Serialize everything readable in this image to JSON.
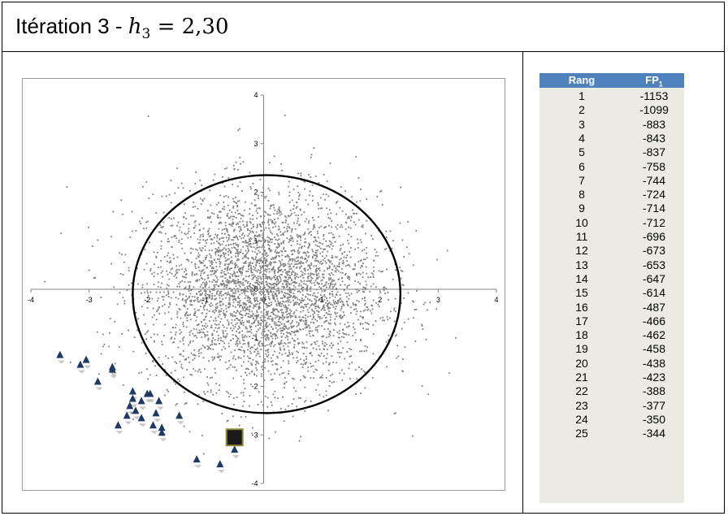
{
  "title": {
    "prefix": "Itération 3 - ",
    "var_letter": "h",
    "var_sub": "3",
    "equals": " = 2,30"
  },
  "chart_data": {
    "type": "scatter",
    "title": "",
    "xlabel": "",
    "ylabel": "",
    "xlim": [
      -4,
      4
    ],
    "ylim": [
      -4,
      4
    ],
    "x_ticks": [
      "-4",
      "-3",
      "-2",
      "-1",
      "0",
      "1",
      "2",
      "3",
      "4"
    ],
    "y_ticks": [
      "4",
      "3",
      "2",
      "1",
      "0",
      "-1",
      "-2",
      "-3",
      "-4"
    ],
    "cloud": {
      "n": 4000,
      "center": [
        0,
        0
      ],
      "sd": [
        1.0,
        1.0
      ],
      "color": "#808080"
    },
    "ellipse": {
      "center": [
        0.05,
        -0.1
      ],
      "rx": 2.3,
      "ry": 2.45,
      "rotation_deg": 0,
      "color": "#000000"
    },
    "series": [
      {
        "marker": "triangle",
        "color": "#1f3864",
        "points": [
          [
            -3.5,
            -1.35
          ],
          [
            -3.15,
            -1.55
          ],
          [
            -3.05,
            -1.45
          ],
          [
            -2.6,
            -1.6
          ],
          [
            -2.6,
            -1.65
          ],
          [
            -2.85,
            -1.9
          ],
          [
            -2.25,
            -2.1
          ],
          [
            -2.25,
            -2.25
          ],
          [
            -2.3,
            -2.4
          ],
          [
            -2.0,
            -2.15
          ],
          [
            -1.95,
            -2.15
          ],
          [
            -2.1,
            -2.3
          ],
          [
            -1.8,
            -2.3
          ],
          [
            -1.85,
            -2.55
          ],
          [
            -2.2,
            -2.5
          ],
          [
            -2.35,
            -2.6
          ],
          [
            -2.1,
            -2.65
          ],
          [
            -2.5,
            -2.8
          ],
          [
            -1.9,
            -2.8
          ],
          [
            -1.75,
            -2.85
          ],
          [
            -1.75,
            -2.95
          ],
          [
            -1.45,
            -2.6
          ],
          [
            -1.15,
            -3.5
          ],
          [
            -0.75,
            -3.6
          ],
          [
            -0.5,
            -3.3
          ]
        ]
      },
      {
        "marker": "square",
        "color": "#1a1a1a",
        "edge": "#8a8a3a",
        "points": [
          [
            -0.5,
            -3.05
          ]
        ]
      }
    ]
  },
  "table": {
    "headers": {
      "rank": "Rang",
      "fp": "FP",
      "fp_sub": "1"
    },
    "rows": [
      [
        "1",
        "-1153"
      ],
      [
        "2",
        "-1099"
      ],
      [
        "3",
        "-883"
      ],
      [
        "4",
        "-843"
      ],
      [
        "5",
        "-837"
      ],
      [
        "6",
        "-758"
      ],
      [
        "7",
        "-744"
      ],
      [
        "8",
        "-724"
      ],
      [
        "9",
        "-714"
      ],
      [
        "10",
        "-712"
      ],
      [
        "11",
        "-696"
      ],
      [
        "12",
        "-673"
      ],
      [
        "13",
        "-653"
      ],
      [
        "14",
        "-647"
      ],
      [
        "15",
        "-614"
      ],
      [
        "16",
        "-487"
      ],
      [
        "17",
        "-466"
      ],
      [
        "18",
        "-462"
      ],
      [
        "19",
        "-458"
      ],
      [
        "20",
        "-438"
      ],
      [
        "21",
        "-423"
      ],
      [
        "22",
        "-388"
      ],
      [
        "23",
        "-377"
      ],
      [
        "24",
        "-350"
      ],
      [
        "25",
        "-344"
      ]
    ]
  }
}
